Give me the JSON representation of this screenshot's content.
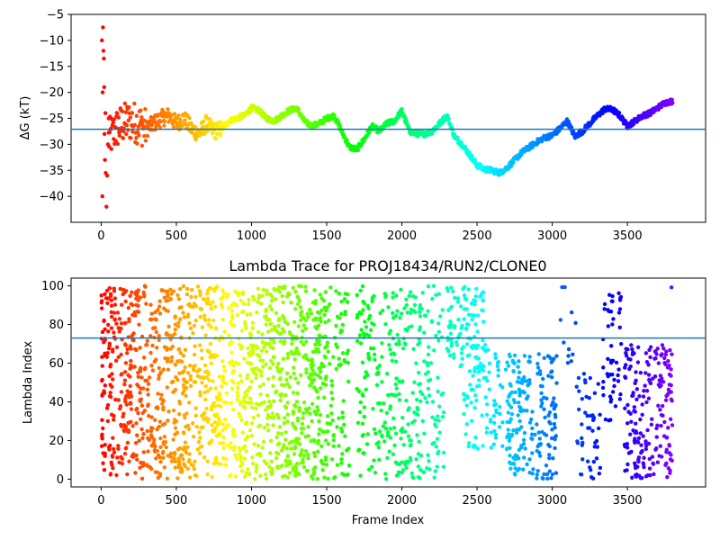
{
  "chart_data": [
    {
      "type": "scatter",
      "title": "",
      "xlabel": "",
      "ylabel": "ΔG (kT)",
      "xlim": [
        -200,
        4020
      ],
      "ylim": [
        -45,
        -5
      ],
      "xticks": [
        0,
        500,
        1000,
        1500,
        2000,
        2500,
        3000,
        3500
      ],
      "yticks": [
        -40,
        -35,
        -30,
        -25,
        -20,
        -15,
        -10,
        -5
      ],
      "xtick_labels": [
        "0",
        "500",
        "1000",
        "1500",
        "2000",
        "2500",
        "3000",
        "3500"
      ],
      "ytick_labels": [
        "−40",
        "−35",
        "−30",
        "−25",
        "−20",
        "−15",
        "−10",
        "−5"
      ],
      "hline": {
        "y": -27.1,
        "color": "#1f77b4"
      },
      "colormap": "rainbow (reversed by frame: red at 0, violet at end)",
      "grid": false,
      "series": [
        {
          "type": "scatter-burst",
          "x": [
            5,
            8,
            10,
            12,
            15,
            18,
            20,
            22,
            25,
            28,
            30,
            35,
            40,
            45,
            50
          ],
          "y": [
            -10,
            -40,
            -20,
            -7.5,
            -12,
            -13.5,
            -19,
            -28,
            -33,
            -24,
            -35.5,
            -42,
            -36,
            -30,
            -25
          ]
        },
        {
          "type": "trace",
          "x": [
            50,
            100,
            150,
            200,
            250,
            300,
            350,
            400,
            450,
            500,
            550,
            600,
            650,
            700,
            750,
            800,
            850,
            900,
            950,
            1000,
            1050,
            1100,
            1150,
            1200,
            1250,
            1300,
            1350,
            1400,
            1450,
            1500,
            1550,
            1600,
            1650,
            1700,
            1750,
            1800,
            1850,
            1900,
            1950,
            2000,
            2050,
            2100,
            2150,
            2200,
            2250,
            2300,
            2350,
            2400,
            2450,
            2500,
            2550,
            2600,
            2650,
            2700,
            2750,
            2800,
            2850,
            2900,
            2950,
            3000,
            3050,
            3100,
            3150,
            3200,
            3250,
            3300,
            3350,
            3400,
            3450,
            3500,
            3550,
            3600,
            3650,
            3700,
            3750,
            3800
          ],
          "y": [
            -29,
            -27,
            -26,
            -25.5,
            -26,
            -27,
            -26,
            -25,
            -24.5,
            -26,
            -25,
            -27,
            -28,
            -26,
            -27.5,
            -27,
            -25.5,
            -25,
            -24.5,
            -23,
            -23.5,
            -25,
            -25.5,
            -24.5,
            -23.5,
            -23,
            -25.5,
            -26.5,
            -26,
            -25,
            -24.5,
            -27.5,
            -30.5,
            -31,
            -29,
            -26.5,
            -27.5,
            -26,
            -25.5,
            -23.5,
            -27.5,
            -28,
            -28,
            -27.5,
            -26,
            -24.5,
            -28.5,
            -30,
            -32,
            -34,
            -34.8,
            -35,
            -35.5,
            -34.5,
            -33,
            -31.5,
            -30.5,
            -29.5,
            -28.7,
            -28.3,
            -27,
            -25.5,
            -28.5,
            -27.5,
            -26,
            -24.5,
            -23.2,
            -23.3,
            -24.5,
            -26.5,
            -25.5,
            -24.5,
            -24,
            -23,
            -22,
            -21.7
          ]
        }
      ]
    },
    {
      "type": "scatter",
      "title": "Lambda Trace for PROJ18434/RUN2/CLONE0",
      "xlabel": "Frame Index",
      "ylabel": "Lambda Index",
      "xlim": [
        -200,
        4020
      ],
      "ylim": [
        -4,
        104
      ],
      "xticks": [
        0,
        500,
        1000,
        1500,
        2000,
        2500,
        3000,
        3500
      ],
      "yticks": [
        0,
        20,
        40,
        60,
        80,
        100
      ],
      "xtick_labels": [
        "0",
        "500",
        "1000",
        "1500",
        "2000",
        "2500",
        "3000",
        "3500"
      ],
      "ytick_labels": [
        "0",
        "20",
        "40",
        "60",
        "80",
        "100"
      ],
      "hline": {
        "y": 73,
        "color": "#1f77b4"
      },
      "colormap": "rainbow (reversed by frame: red at 0, violet at end)",
      "grid": false,
      "bands": [
        {
          "x_start": 0,
          "x_end": 1500,
          "y_min": 0,
          "y_max": 100,
          "density": "high"
        },
        {
          "x_start": 1500,
          "x_end": 1650,
          "y_min": 0,
          "y_max": 100,
          "density": "medium"
        },
        {
          "x_start": 1700,
          "x_end": 2280,
          "y_min": 0,
          "y_max": 100,
          "density": "medium"
        },
        {
          "x_start": 2300,
          "x_end": 2550,
          "y_min": 55,
          "y_max": 100,
          "density": "high"
        },
        {
          "x_start": 2400,
          "x_end": 2720,
          "y_min": 15,
          "y_max": 70,
          "density": "medium"
        },
        {
          "x_start": 2700,
          "x_end": 3030,
          "y_min": 0,
          "y_max": 65,
          "density": "high"
        },
        {
          "x_start": 3050,
          "x_end": 3160,
          "y_min": 60,
          "y_max": 100,
          "density": "low"
        },
        {
          "x_start": 3160,
          "x_end": 3320,
          "y_min": 0,
          "y_max": 55,
          "density": "medium"
        },
        {
          "x_start": 3330,
          "x_end": 3460,
          "y_min": 30,
          "y_max": 100,
          "density": "medium"
        },
        {
          "x_start": 3480,
          "x_end": 3800,
          "y_min": 0,
          "y_max": 70,
          "density": "high"
        },
        {
          "x_start": 3780,
          "x_end": 3800,
          "y_min": 88,
          "y_max": 100,
          "density": "low"
        }
      ]
    }
  ]
}
